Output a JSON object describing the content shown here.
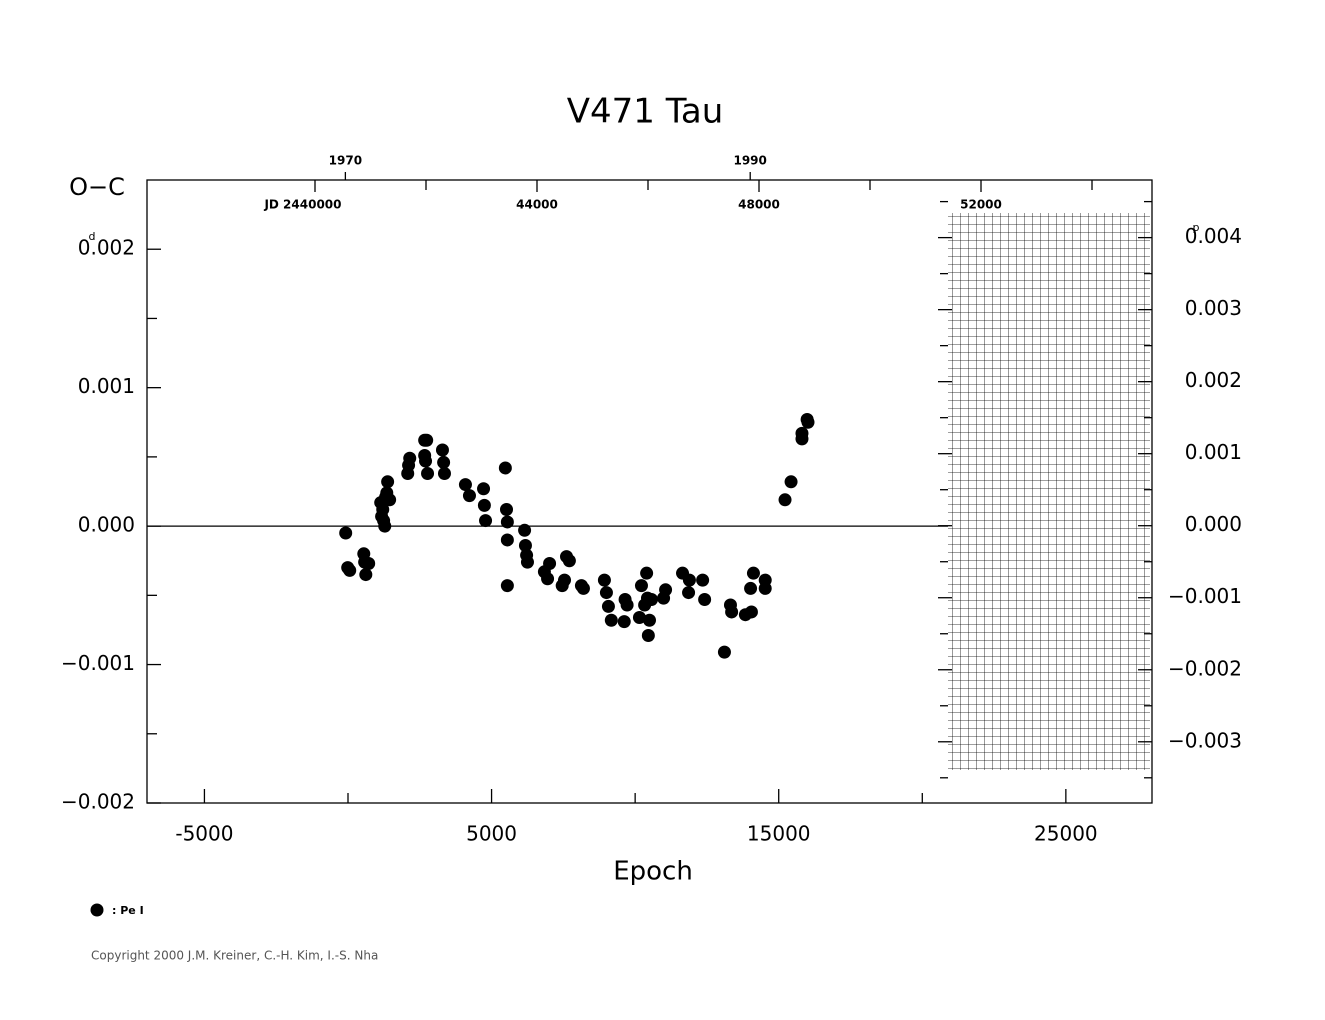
{
  "chart_data": {
    "type": "scatter",
    "title": "V471  Tau",
    "xlabel": "Epoch",
    "ylabel": "O−C",
    "y_unit": "d",
    "y2_unit": "p",
    "xlim": [
      -7000,
      28000
    ],
    "xticks": [
      -5000,
      5000,
      15000,
      25000
    ],
    "x_minor_ticks": [
      0,
      10000,
      20000
    ],
    "ylim": [
      -0.002,
      0.0025
    ],
    "yticks": [
      {
        "value": -0.002,
        "label": "−0.002"
      },
      {
        "value": -0.001,
        "label": "−0.001"
      },
      {
        "value": 0,
        "label": "0.000"
      },
      {
        "value": 0.001,
        "label": "0.001"
      },
      {
        "value": 0.002,
        "label": "0.002"
      }
    ],
    "y_minor_ticks": [
      -0.0015,
      -0.0005,
      0.0005,
      0.0015
    ],
    "y2lim": [
      -0.00385,
      0.0048
    ],
    "y2ticks": [
      {
        "value": -0.003,
        "label": "−0.003"
      },
      {
        "value": -0.002,
        "label": "−0.002"
      },
      {
        "value": -0.001,
        "label": "−0.001"
      },
      {
        "value": 0,
        "label": "0.000"
      },
      {
        "value": 0.001,
        "label": "0.001"
      },
      {
        "value": 0.002,
        "label": "0.002"
      },
      {
        "value": 0.003,
        "label": "0.003"
      },
      {
        "value": 0.004,
        "label": "0.004"
      }
    ],
    "y2_minor_ticks": [
      -0.0035,
      -0.0025,
      -0.0015,
      -0.0005,
      0.0005,
      0.0015,
      0.0025,
      0.0035,
      0.0045
    ],
    "year_lim": [
      1960.2,
      2009.85
    ],
    "year_ticks": [
      1970,
      1990
    ],
    "jd_lim": [
      2436973,
      2455081
    ],
    "jd_ticks": [
      {
        "value": 2440000,
        "label": "JD  2440000"
      },
      {
        "value": 2444000,
        "label": "44000"
      },
      {
        "value": 2448000,
        "label": "48000"
      },
      {
        "value": 2452000,
        "label": "52000"
      }
    ],
    "jd_minor_ticks": [
      2442000,
      2446000,
      2450000,
      2454000
    ],
    "x": [
      -80,
      -10,
      60,
      550,
      580,
      620,
      720,
      1140,
      1170,
      1210,
      1240,
      1280,
      1310,
      1350,
      1380,
      1450,
      2080,
      2110,
      2150,
      2670,
      2740,
      2670,
      2700,
      2770,
      3290,
      3330,
      3360,
      4090,
      4230,
      4720,
      4750,
      4790,
      5480,
      5520,
      5550,
      5550,
      5550,
      6150,
      6180,
      6220,
      6250,
      6840,
      6950,
      7020,
      7460,
      7540,
      7610,
      7710,
      8130,
      8200,
      8930,
      9000,
      9070,
      9170,
      9620,
      9650,
      9720,
      10150,
      10220,
      10330,
      10400,
      10430,
      10460,
      10500,
      10570,
      10990,
      11060,
      11650,
      11860,
      11890,
      12350,
      12420,
      13110,
      13320,
      13360,
      13840,
      14020,
      14050,
      14120,
      14530,
      14530,
      15220,
      15430,
      15810,
      15810,
      15990,
      16020
    ],
    "series": [
      {
        "name": ": Pe I",
        "color": "#000000",
        "values": [
          -5e-05,
          -0.0003,
          -0.00032,
          -0.0002,
          -0.00026,
          -0.00035,
          -0.00027,
          0.00017,
          7e-05,
          0.00012,
          4e-05,
          0,
          0.00021,
          0.00024,
          0.00032,
          0.00019,
          0.00038,
          0.00044,
          0.00049,
          0.00062,
          0.00062,
          0.00051,
          0.00047,
          0.00038,
          0.00055,
          0.00046,
          0.00038,
          0.0003,
          0.00022,
          0.00027,
          0.00015,
          4e-05,
          0.00042,
          0.00012,
          3e-05,
          -0.0001,
          -0.00043,
          -3e-05,
          -0.00014,
          -0.00021,
          -0.00026,
          -0.00033,
          -0.00038,
          -0.00027,
          -0.00043,
          -0.00039,
          -0.00022,
          -0.00025,
          -0.00043,
          -0.00045,
          -0.00039,
          -0.00048,
          -0.00058,
          -0.00068,
          -0.00069,
          -0.00053,
          -0.00057,
          -0.00066,
          -0.00043,
          -0.00057,
          -0.00034,
          -0.00052,
          -0.00079,
          -0.00068,
          -0.00053,
          -0.00052,
          -0.00046,
          -0.00034,
          -0.00048,
          -0.00039,
          -0.00039,
          -0.00053,
          -0.00091,
          -0.00057,
          -0.00062,
          -0.00064,
          -0.00045,
          -0.00062,
          -0.00034,
          -0.00039,
          -0.00045,
          0.00019,
          0.00032,
          0.00067,
          0.00063,
          0.00077,
          0.00075
        ]
      }
    ],
    "footer": "Copyright 2000 J.M. Kreiner, C.-H. Kim, I.-S. Nha"
  }
}
